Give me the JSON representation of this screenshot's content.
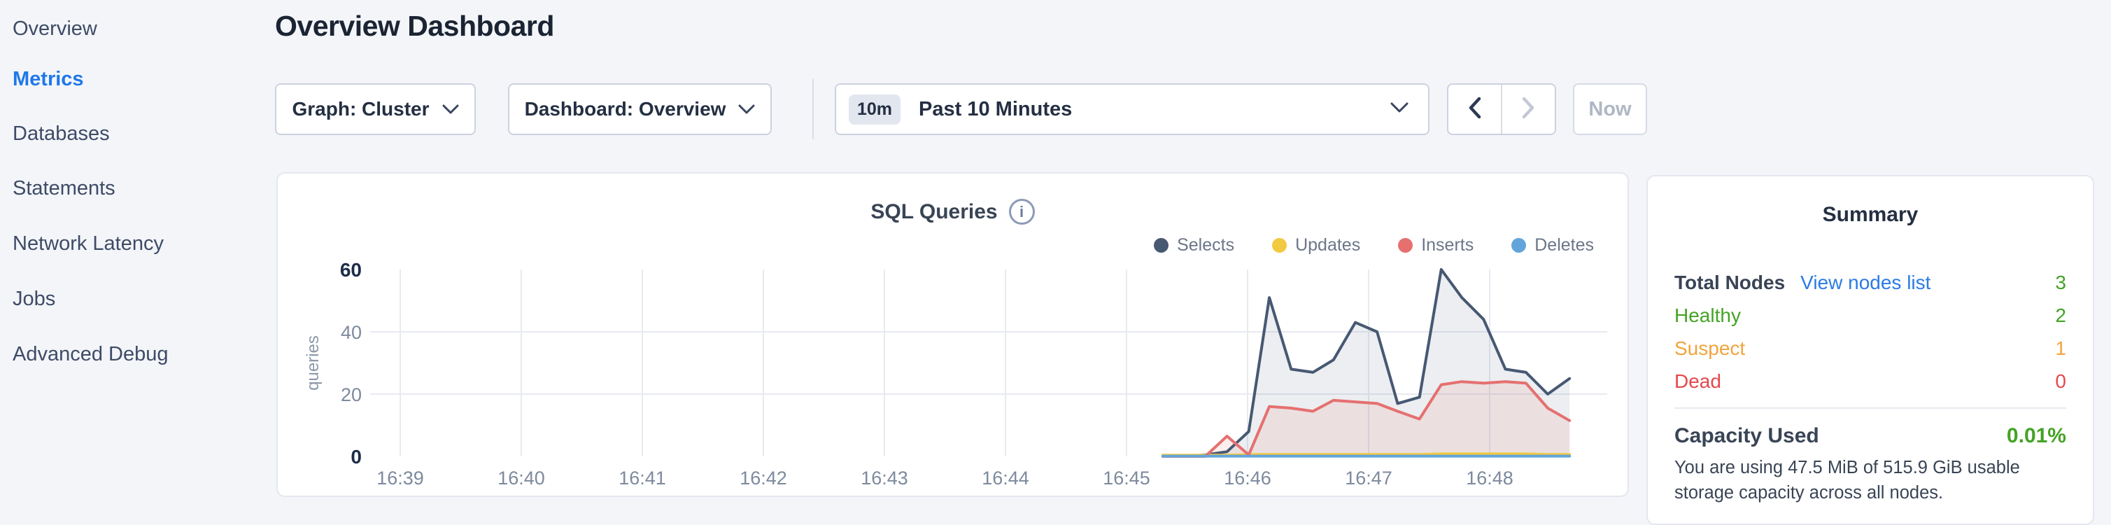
{
  "sidebar": {
    "items": [
      {
        "label": "Overview",
        "active": false
      },
      {
        "label": "Metrics",
        "active": true
      },
      {
        "label": "Databases",
        "active": false
      },
      {
        "label": "Statements",
        "active": false
      },
      {
        "label": "Network Latency",
        "active": false
      },
      {
        "label": "Jobs",
        "active": false
      },
      {
        "label": "Advanced Debug",
        "active": false
      }
    ],
    "active_color": "#1f78e8"
  },
  "header": {
    "title": "Overview Dashboard"
  },
  "toolbar": {
    "graph_dropdown_label": "Graph: Cluster",
    "dashboard_dropdown_label": "Dashboard: Overview",
    "time_window_badge": "10m",
    "time_window_label": "Past 10 Minutes",
    "now_label": "Now"
  },
  "chart_panel": {
    "title": "SQL Queries",
    "info_icon_glyph": "i"
  },
  "chart_data": {
    "type": "area",
    "title": "SQL Queries",
    "ylabel": "queries",
    "ylim": [
      0,
      60
    ],
    "grid": "on",
    "legend_position": "top-right",
    "xticks": [
      "16:39",
      "16:40",
      "16:41",
      "16:42",
      "16:43",
      "16:44",
      "16:45",
      "16:46",
      "16:47",
      "16:48"
    ],
    "yticks": [
      {
        "v": 0,
        "label": "0",
        "bold": true,
        "line": false
      },
      {
        "v": 20,
        "label": "20",
        "bold": false,
        "line": true
      },
      {
        "v": 40,
        "label": "40",
        "bold": false,
        "line": true
      },
      {
        "v": 60,
        "label": "60",
        "bold": true,
        "line": false
      }
    ],
    "x_minutes_after_1639": [
      6.3,
      6.48,
      6.65,
      6.83,
      7.01,
      7.18,
      7.36,
      7.54,
      7.71,
      7.89,
      8.07,
      8.24,
      8.42,
      8.6,
      8.77,
      8.95,
      9.13,
      9.3,
      9.48,
      9.66
    ],
    "series": [
      {
        "name": "Selects",
        "color": "#475872",
        "fill": "rgba(71,88,114,0.10)",
        "values": [
          0,
          0,
          0.5,
          1.5,
          8,
          51,
          28,
          27,
          31,
          43,
          40,
          17,
          19,
          60,
          51,
          44,
          28,
          27,
          20,
          25
        ]
      },
      {
        "name": "Updates",
        "color": "#f1ca42",
        "fill": "none",
        "values": [
          0.4,
          0.4,
          0.4,
          0.4,
          0.6,
          0.6,
          0.6,
          0.6,
          0.6,
          0.6,
          0.6,
          0.6,
          0.6,
          0.8,
          0.8,
          0.8,
          0.8,
          0.8,
          0.6,
          0.6
        ]
      },
      {
        "name": "Inserts",
        "color": "#e5706f",
        "fill": "rgba(229,112,111,0.12)",
        "values": [
          0,
          0,
          0,
          6.5,
          0.5,
          16,
          15.5,
          14.5,
          18,
          17.5,
          17,
          14.5,
          12,
          23,
          24,
          23.5,
          24,
          23.5,
          15.5,
          11.5
        ]
      },
      {
        "name": "Deletes",
        "color": "#61a5db",
        "fill": "none",
        "values": [
          0.1,
          0.1,
          0.1,
          0.1,
          0.1,
          0.1,
          0.1,
          0.1,
          0.1,
          0.1,
          0.1,
          0.1,
          0.1,
          0.1,
          0.1,
          0.1,
          0.1,
          0.1,
          0.1,
          0.1
        ]
      }
    ]
  },
  "summary": {
    "title": "Summary",
    "rows": [
      {
        "label": "Total Nodes",
        "link": "View nodes list",
        "value": "3",
        "label_color": "#394455",
        "value_color": "#44a325"
      },
      {
        "label": "Healthy",
        "value": "2",
        "label_color": "#44a325",
        "value_color": "#44a325"
      },
      {
        "label": "Suspect",
        "value": "1",
        "label_color": "#f2a43d",
        "value_color": "#f2a43d"
      },
      {
        "label": "Dead",
        "value": "0",
        "label_color": "#e5484d",
        "value_color": "#e5484d"
      }
    ],
    "capacity_label": "Capacity Used",
    "capacity_value": "0.01%",
    "capacity_value_color": "#44a325",
    "capacity_description": "You are using 47.5 MiB of 515.9 GiB usable storage capacity across all nodes."
  }
}
